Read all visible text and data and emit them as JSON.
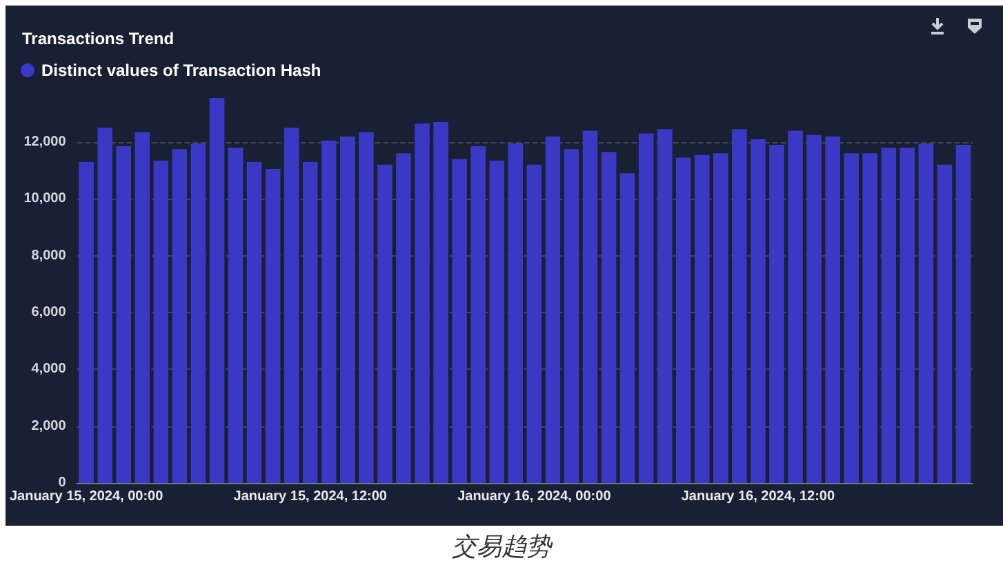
{
  "chart_data": {
    "type": "bar",
    "title": "Transactions Trend",
    "categories": [
      "January 15, 2024, 00:00",
      null,
      null,
      null,
      null,
      null,
      null,
      null,
      null,
      null,
      null,
      null,
      "January 15, 2024, 12:00",
      null,
      null,
      null,
      null,
      null,
      null,
      null,
      null,
      null,
      null,
      null,
      "January 16, 2024, 00:00",
      null,
      null,
      null,
      null,
      null,
      null,
      null,
      null,
      null,
      null,
      null,
      "January 16, 2024, 12:00",
      null,
      null,
      null,
      null,
      null,
      null,
      null,
      null,
      null,
      null,
      null
    ],
    "series": [
      {
        "name": "Distinct values of Transaction Hash",
        "color": "#3b38c6",
        "values": [
          11300,
          12500,
          11850,
          12350,
          11350,
          11750,
          11950,
          13550,
          11800,
          11300,
          11050,
          12500,
          11300,
          12050,
          12200,
          12350,
          11200,
          11600,
          12650,
          12700,
          11400,
          11850,
          11350,
          11950,
          11200,
          12200,
          11750,
          12400,
          11650,
          10900,
          12300,
          12450,
          11450,
          11550,
          11600,
          12450,
          12100,
          11900,
          12400,
          12250,
          12200,
          11600,
          11600,
          11800,
          11800,
          11950,
          11200,
          11900
        ]
      }
    ],
    "ylim": [
      0,
      13600
    ],
    "yticks": [
      0,
      {
        "value": 2000,
        "label": "2,000"
      },
      {
        "value": 4000,
        "label": "4,000"
      },
      {
        "value": 6000,
        "label": "6,000"
      },
      {
        "value": 8000,
        "label": "8,000"
      },
      {
        "value": 10000,
        "label": "10,000"
      },
      {
        "value": 12000,
        "label": "12,000"
      }
    ],
    "grid": "y",
    "legend": "top left",
    "annotations": [
      "交易趋势"
    ]
  }
}
